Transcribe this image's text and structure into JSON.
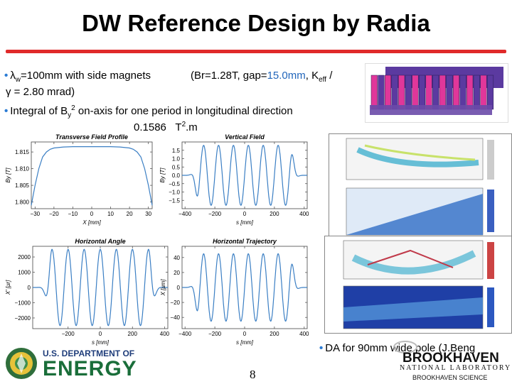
{
  "slide": {
    "title": "DW Reference Design by Radia",
    "bullet1": {
      "a": "λ",
      "sub": "w",
      "b": "=100mm with side magnets",
      "params_pre": "(Br=1.28T, gap=",
      "gap": "15.0mm",
      "params_post": ", K",
      "keff_sub": "eff",
      "slash": " /",
      "line2": "γ = 2.80 mrad)"
    },
    "bullet2": {
      "text_pre": "Integral of B",
      "sub": "y",
      "sup": "2",
      "text_post": " on-axis for one period in longitudinal direction",
      "value": "0.1586",
      "unit_pre": "T",
      "unit_sup": "2",
      "unit_post": ".m"
    },
    "bullet3": {
      "text": "DA for 90mm wide pole (J.Beng"
    },
    "page_number": "8"
  },
  "footer": {
    "doe_line1": "U.S. DEPARTMENT OF",
    "doe_line2": "ENERGY",
    "bnl_name": "BROOKHAVEN",
    "bnl_sub": "NATIONAL LABORATORY",
    "bnl_science": "BROOKHAVEN SCIENCE"
  },
  "colors": {
    "title_rule": "#e02a2a",
    "curve": "#3b7fc4",
    "magnet_pink": "#e0379a",
    "magnet_purple": "#5b3aa0"
  },
  "chart_data": [
    {
      "type": "line",
      "title": "Transverse Field Profile",
      "xlabel": "X [mm]",
      "ylabel": "By [T]",
      "xticks": [
        "−30",
        "−20",
        "−10",
        "0",
        "10",
        "20",
        "30"
      ],
      "yticks": [
        "1.815",
        "1.810",
        "1.805",
        "1.800"
      ],
      "xlim": [
        -32,
        32
      ],
      "ylim": [
        1.798,
        1.818
      ],
      "series": [
        {
          "x": [
            -32,
            -30,
            -28,
            -26,
            -24,
            -22,
            -20,
            -15,
            -10,
            0,
            10,
            15,
            20,
            22,
            24,
            26,
            28,
            30,
            32
          ],
          "y": [
            1.799,
            1.805,
            1.81,
            1.8135,
            1.815,
            1.8158,
            1.8162,
            1.8165,
            1.8166,
            1.8166,
            1.8166,
            1.8165,
            1.8162,
            1.8158,
            1.815,
            1.8135,
            1.81,
            1.805,
            1.799
          ]
        }
      ]
    },
    {
      "type": "line",
      "title": "Vertical Field",
      "xlabel": "s [mm]",
      "ylabel": "By [T]",
      "xticks": [
        "−400",
        "−200",
        "0",
        "200",
        "400"
      ],
      "yticks": [
        "1.5",
        "1.0",
        "0.5",
        "0.0",
        "−0.5",
        "−1.0",
        "−1.5"
      ],
      "xlim": [
        -420,
        420
      ],
      "ylim": [
        -2.0,
        2.0
      ],
      "function": {
        "form": "sin",
        "amplitude": 1.8,
        "period": 100,
        "extent": 300,
        "fringe": 60
      }
    },
    {
      "type": "line",
      "title": "Horizontal Angle",
      "xlabel": "s [mm]",
      "ylabel": "X' [μr]",
      "xticks": [
        "−200",
        "0",
        "200",
        "400"
      ],
      "yticks": [
        "2000",
        "1000",
        "0",
        "−1000",
        "−2000"
      ],
      "xlim": [
        -420,
        420
      ],
      "ylim": [
        -2700,
        2700
      ],
      "function": {
        "form": "cos",
        "amplitude": 2500,
        "period": 100,
        "extent": 300,
        "fringe": 60
      }
    },
    {
      "type": "line",
      "title": "Horizontal Trajectory",
      "xlabel": "s [mm]",
      "ylabel": "X [μm]",
      "xticks": [
        "−400",
        "−200",
        "0",
        "200",
        "400"
      ],
      "yticks": [
        "40",
        "20",
        "0",
        "−20",
        "−40"
      ],
      "xlim": [
        -420,
        420
      ],
      "ylim": [
        -55,
        55
      ],
      "function": {
        "form": "sin",
        "amplitude": 45,
        "period": 100,
        "extent": 300,
        "fringe": 60
      }
    }
  ]
}
